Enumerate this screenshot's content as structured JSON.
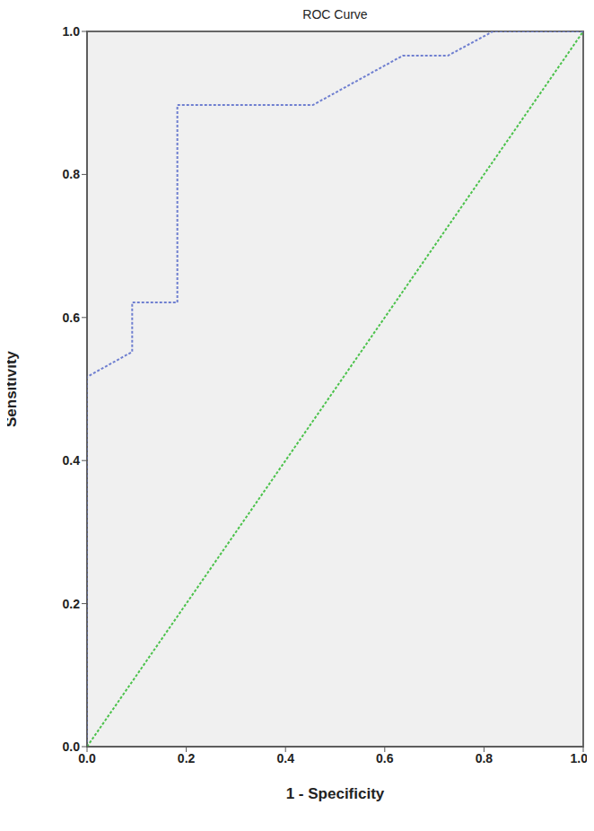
{
  "chart_data": {
    "type": "line",
    "title": "ROC Curve",
    "x_label": "1 - Specificity",
    "y_label": "Sensitivity",
    "xlim": [
      0,
      1
    ],
    "ylim": [
      0,
      1
    ],
    "xticks": [
      {
        "value": 0,
        "label": "0.0"
      },
      0.2,
      0.4,
      0.6,
      0.8,
      {
        "value": 1,
        "label": "1.0"
      }
    ],
    "yticks": [
      {
        "value": 0,
        "label": "0.0"
      },
      0.2,
      0.4,
      0.6,
      0.8,
      {
        "value": 1,
        "label": "1.0"
      }
    ],
    "grid": false,
    "series": [
      {
        "color": "#6f7fd0",
        "line_style": "dashed",
        "x": [
          0,
          0,
          0.091,
          0.091,
          0.182,
          0.182,
          0.455,
          0.636,
          0.727,
          0.818,
          1
        ],
        "values": [
          0,
          0.517,
          0.552,
          0.621,
          0.621,
          0.897,
          0.897,
          0.966,
          0.966,
          1,
          1
        ]
      },
      {
        "color": "#4cc24c",
        "line_style": "dashed",
        "x": [
          0,
          1
        ],
        "values": [
          0,
          1
        ]
      }
    ]
  }
}
